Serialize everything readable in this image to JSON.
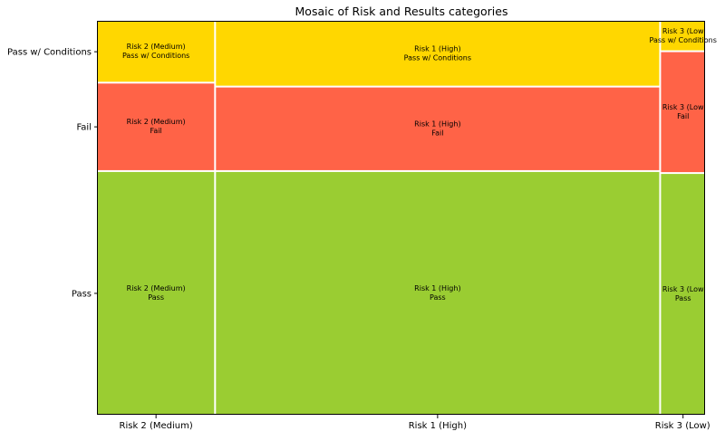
{
  "chart_data": {
    "type": "mosaic",
    "title": "Mosaic of Risk and Results categories",
    "xlabel": "",
    "ylabel": "",
    "categories": [
      "Risk 2 (Medium)",
      "Risk 1 (High)",
      "Risk 3 (Low)"
    ],
    "category_widths": [
      0.193,
      0.733,
      0.074
    ],
    "results": [
      "Pass",
      "Fail",
      "Pass w/ Conditions"
    ],
    "y_tick_labels": [
      "Pass",
      "Fail",
      "Pass w/ Conditions"
    ],
    "x_tick_labels": [
      "Risk 2 (Medium)",
      "Risk 1 (High)",
      "Risk 3 (Low)"
    ],
    "proportions": {
      "Risk 2 (Medium)": {
        "Pass": 0.62,
        "Fail": 0.225,
        "Pass w/ Conditions": 0.155
      },
      "Risk 1 (High)": {
        "Pass": 0.62,
        "Fail": 0.215,
        "Pass w/ Conditions": 0.165
      },
      "Risk 3 (Low)": {
        "Pass": 0.615,
        "Fail": 0.31,
        "Pass w/ Conditions": 0.075
      }
    },
    "cells": [
      {
        "category": "Risk 2 (Medium)",
        "result": "Pass",
        "label_lines": [
          "Risk 2 (Medium)",
          "Pass"
        ]
      },
      {
        "category": "Risk 2 (Medium)",
        "result": "Fail",
        "label_lines": [
          "Risk 2 (Medium)",
          "Fail"
        ]
      },
      {
        "category": "Risk 2 (Medium)",
        "result": "Pass w/ Conditions",
        "label_lines": [
          "Risk 2 (Medium)",
          "Pass w/ Conditions"
        ]
      },
      {
        "category": "Risk 1 (High)",
        "result": "Pass",
        "label_lines": [
          "Risk 1 (High)",
          "Pass"
        ]
      },
      {
        "category": "Risk 1 (High)",
        "result": "Fail",
        "label_lines": [
          "Risk 1 (High)",
          "Fail"
        ]
      },
      {
        "category": "Risk 1 (High)",
        "result": "Pass w/ Conditions",
        "label_lines": [
          "Risk 1 (High)",
          "Pass w/ Conditions"
        ]
      },
      {
        "category": "Risk 3 (Low)",
        "result": "Pass",
        "label_lines": [
          "Risk 3 (Low",
          "Pass"
        ]
      },
      {
        "category": "Risk 3 (Low)",
        "result": "Fail",
        "label_lines": [
          "Risk 3 (Low",
          "Fail"
        ]
      },
      {
        "category": "Risk 3 (Low)",
        "result": "Pass w/ Conditions",
        "label_lines": [
          "Risk 3 (Low",
          "Pass w/ Conditions"
        ]
      }
    ],
    "colors": {
      "Pass": "#9ACD32",
      "Fail": "#FF6347",
      "Pass w/ Conditions": "#FFD700",
      "gap": "#ffffff"
    },
    "grid": false,
    "legend": "none"
  }
}
